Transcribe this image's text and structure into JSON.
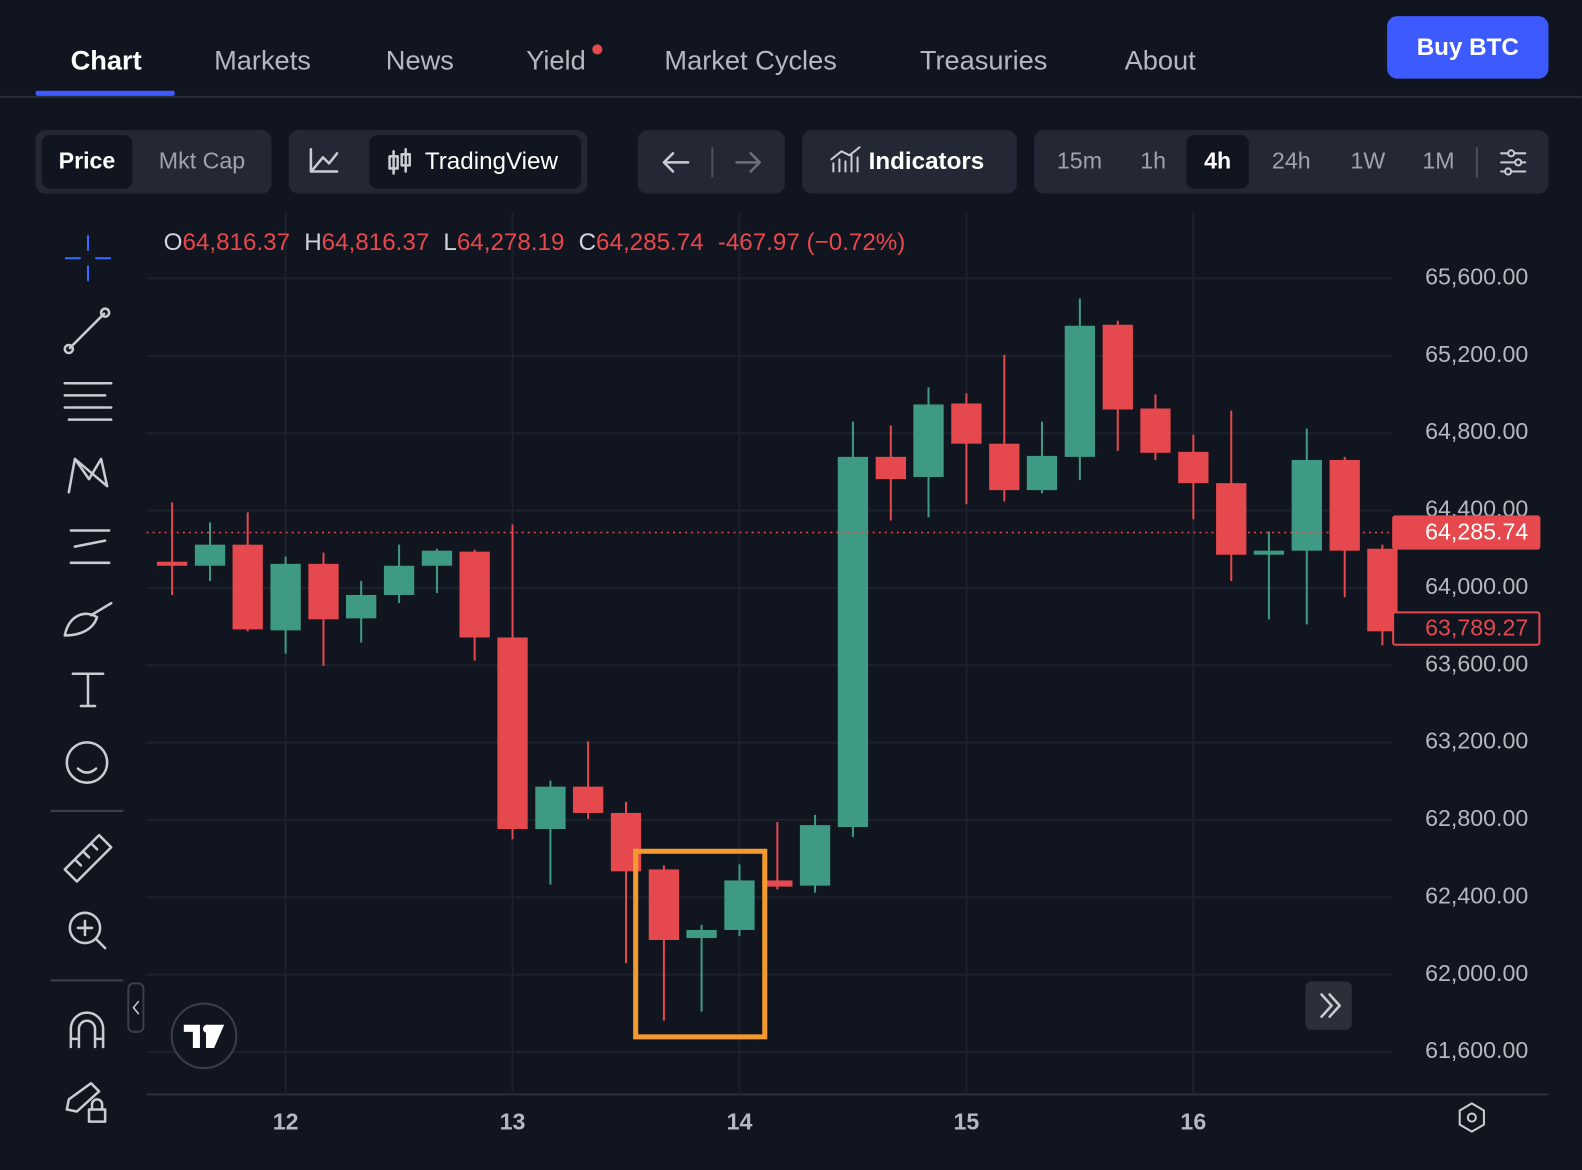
{
  "nav": {
    "tabs": [
      "Chart",
      "Markets",
      "News",
      "Yield",
      "Market Cycles",
      "Treasuries",
      "About"
    ],
    "button": "Buy BTC"
  },
  "toolbar": {
    "mode": [
      "Price",
      "Mkt Cap"
    ],
    "chart_style": "TradingView",
    "indicators": "Indicators",
    "timeframes": [
      "15m",
      "1h",
      "4h",
      "24h",
      "1W",
      "1M"
    ]
  },
  "chart_data": {
    "type": "candlestick",
    "ohlc_legend": [
      {
        "label": "O",
        "value": "64,816.37"
      },
      {
        "label": "H",
        "value": "64,816.37"
      },
      {
        "label": "L",
        "value": "64,278.19"
      },
      {
        "label": "C",
        "value": "64,285.74"
      }
    ],
    "change": "-467.97 (−0.72%)",
    "x": [
      11.5,
      11.667,
      11.833,
      12,
      12.167,
      12.333,
      12.5,
      12.667,
      12.833,
      13,
      13.167,
      13.333,
      13.5,
      13.667,
      13.833,
      14,
      14.167,
      14.333,
      14.5,
      14.667,
      14.833,
      15,
      15.167,
      15.333,
      15.5,
      15.667,
      15.833,
      16,
      16.167,
      16.333,
      16.5,
      16.667,
      16.833
    ],
    "open": [
      64135,
      64114,
      64223,
      63780,
      64124,
      63842,
      63963,
      64114,
      64187,
      63743,
      62753,
      62972,
      62836,
      62544,
      62189,
      62231,
      62487,
      62460,
      62763,
      64677,
      64573,
      64953,
      64745,
      64505,
      64677,
      65360,
      64927,
      64703,
      64541,
      64171,
      64192,
      64661,
      64202
    ],
    "high": [
      64442,
      64338,
      64390,
      64161,
      64182,
      64035,
      64223,
      64202,
      64197,
      64328,
      63003,
      63206,
      62893,
      62565,
      62257,
      62570,
      62789,
      62826,
      64859,
      64839,
      65037,
      65005,
      65204,
      64859,
      65496,
      65381,
      65000,
      64792,
      64917,
      64291,
      64823,
      64677,
      64223
    ],
    "low": [
      63963,
      64035,
      63775,
      63660,
      63597,
      63717,
      63921,
      63973,
      63624,
      62700,
      62466,
      62805,
      62059,
      61762,
      61809,
      62200,
      62440,
      62424,
      62711,
      64348,
      64364,
      64432,
      64447,
      64489,
      64557,
      64708,
      64661,
      64354,
      64035,
      63837,
      63811,
      63952,
      63702
    ],
    "close": [
      64114,
      64223,
      63785,
      64124,
      63837,
      63963,
      64114,
      64192,
      63743,
      62753,
      62972,
      62836,
      62534,
      62179,
      62231,
      62487,
      62455,
      62773,
      64677,
      64562,
      64948,
      64745,
      64505,
      64682,
      65355,
      64922,
      64698,
      64541,
      64171,
      64192,
      64661,
      64192,
      63775
    ],
    "up_color": "#3f9a85",
    "down_color": "#e5484d",
    "xlim": [
      11.387,
      16.876
    ],
    "xticks": [
      12,
      13,
      14,
      15,
      16
    ],
    "ylim": [
      61381,
      65944
    ],
    "yticks": [
      {
        "value": 61600,
        "label": "61,600.00"
      },
      {
        "value": 62000,
        "label": "62,000.00"
      },
      {
        "value": 62400,
        "label": "62,400.00"
      },
      {
        "value": 62800,
        "label": "62,800.00"
      },
      {
        "value": 63200,
        "label": "63,200.00"
      },
      {
        "value": 63600,
        "label": "63,600.00"
      },
      {
        "value": 64000,
        "label": "64,000.00"
      },
      {
        "value": 64400,
        "label": "64,400.00"
      },
      {
        "value": 64800,
        "label": "64,800.00"
      },
      {
        "value": 65200,
        "label": "65,200.00"
      },
      {
        "value": 65600,
        "label": "65,600.00"
      }
    ],
    "price_labels": [
      {
        "value": 64285.74,
        "label": "64,285.74"
      },
      {
        "value": 63789.27,
        "label": "63,789.27"
      }
    ],
    "grid": true
  }
}
